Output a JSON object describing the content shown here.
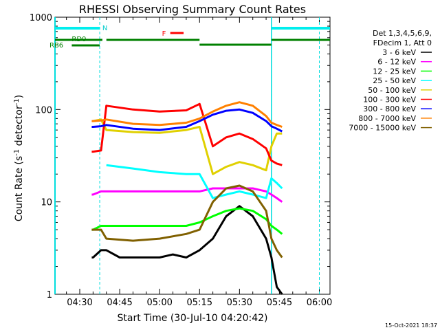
{
  "chart_data": {
    "type": "line",
    "title": "RHESSI Observing Summary Count Rates",
    "xlabel": "Start Time (30-Jul-10 04:20:42)",
    "ylabel_main": "Count Rate (s",
    "ylabel_sup": "-1",
    "ylabel_mid": " detector",
    "ylabel_end": ")",
    "footer": "15-Oct-2021 18:37",
    "x_ticks": [
      "04:30",
      "04:45",
      "05:00",
      "05:15",
      "05:30",
      "05:45",
      "06:00"
    ],
    "x_ticks_min": [
      30,
      45,
      60,
      75,
      90,
      105,
      120
    ],
    "xlim_min": [
      20.7,
      124
    ],
    "y_ticks": [
      "1",
      "10",
      "100",
      "1000"
    ],
    "y_tick_values": [
      1,
      10,
      100,
      1000
    ],
    "ylim": [
      1,
      1000
    ],
    "yscale": "log",
    "legend_header": [
      "Det 1,3,4,5,6,9,",
      "FDecim 1, Att 0"
    ],
    "legend_placement": "right",
    "series": [
      {
        "name": "3 - 6 keV",
        "color": "#000000",
        "x": [
          20.7,
          34.5,
          35,
          38,
          40,
          45,
          50,
          55,
          60,
          65,
          70,
          75,
          80,
          85,
          90,
          95,
          100,
          102,
          104,
          106
        ],
        "y": [
          null,
          2.5,
          2.5,
          3,
          3,
          2.5,
          2.5,
          2.5,
          2.5,
          2.7,
          2.5,
          3,
          4,
          7,
          9,
          7,
          4,
          2.5,
          1.2,
          1
        ]
      },
      {
        "name": "6 - 12 keV",
        "color": "#ff00ff",
        "x": [
          34.5,
          35,
          38,
          40,
          50,
          60,
          70,
          75,
          80,
          85,
          90,
          95,
          100,
          102,
          104,
          106
        ],
        "y": [
          12,
          12,
          13,
          13,
          13,
          13,
          13,
          13,
          14,
          14,
          14,
          14,
          13,
          12,
          11,
          10
        ]
      },
      {
        "name": "12 - 25 keV",
        "color": "#00ff00",
        "x": [
          34.5,
          35,
          38,
          40,
          50,
          60,
          70,
          75,
          80,
          85,
          90,
          95,
          100,
          102,
          104,
          106
        ],
        "y": [
          5,
          5,
          5.5,
          5.5,
          5.5,
          5.5,
          5.5,
          6,
          7,
          8,
          8.5,
          8,
          6.5,
          5.5,
          5,
          4.5
        ]
      },
      {
        "name": "25 - 50 keV",
        "color": "#00ffff",
        "x": [
          34.5,
          35,
          38,
          40,
          50,
          60,
          70,
          75,
          80,
          85,
          90,
          95,
          100,
          102,
          104,
          106
        ],
        "y": [
          null,
          null,
          null,
          25,
          23,
          21,
          20,
          20,
          11,
          12,
          13,
          12,
          11,
          18,
          16,
          14
        ]
      },
      {
        "name": "50 - 100 keV",
        "color": "#e0d000",
        "x": [
          34.5,
          35,
          38,
          40,
          50,
          60,
          70,
          75,
          80,
          85,
          90,
          95,
          100,
          102,
          104,
          106
        ],
        "y": [
          null,
          75,
          78,
          60,
          57,
          56,
          60,
          65,
          20,
          24,
          27,
          25,
          22,
          40,
          55,
          55
        ]
      },
      {
        "name": "100 - 300 keV",
        "color": "#ff0000",
        "x": [
          34.5,
          35,
          38,
          40,
          50,
          60,
          70,
          75,
          80,
          85,
          90,
          95,
          100,
          102,
          104,
          106
        ],
        "y": [
          35,
          35,
          36,
          110,
          100,
          95,
          98,
          115,
          40,
          50,
          55,
          48,
          38,
          28,
          26,
          25
        ]
      },
      {
        "name": "300 - 800 keV",
        "color": "#0000ff",
        "x": [
          34.5,
          35,
          38,
          40,
          50,
          60,
          70,
          75,
          80,
          85,
          90,
          95,
          100,
          102,
          104,
          106
        ],
        "y": [
          65,
          65,
          66,
          68,
          62,
          60,
          65,
          75,
          88,
          97,
          100,
          92,
          75,
          66,
          62,
          58
        ]
      },
      {
        "name": "800 - 7000 keV",
        "color": "#ff8000",
        "x": [
          34.5,
          35,
          38,
          40,
          50,
          60,
          70,
          75,
          80,
          85,
          90,
          95,
          100,
          102,
          104,
          106
        ],
        "y": [
          75,
          75,
          76,
          78,
          70,
          68,
          72,
          80,
          95,
          110,
          120,
          110,
          85,
          72,
          68,
          65
        ]
      },
      {
        "name": "7000 - 15000 keV",
        "color": "#806000",
        "x": [
          34.5,
          35,
          38,
          40,
          50,
          60,
          70,
          75,
          80,
          85,
          90,
          95,
          100,
          102,
          104,
          106
        ],
        "y": [
          5,
          5,
          5,
          4,
          3.8,
          4,
          4.5,
          5,
          10,
          14,
          15,
          13,
          8,
          4,
          3,
          2.5
        ]
      }
    ],
    "annotations": {
      "N_label": "N",
      "F_label": "F",
      "RD0_label": "RD0",
      "RB6_label": "RB6"
    },
    "night_segments_min": [
      [
        20.7,
        37.5
      ],
      [
        102,
        124
      ]
    ],
    "sun_segments_min": [
      [
        20.7,
        38.5
      ],
      [
        40,
        75
      ],
      [
        75,
        102
      ],
      [
        102,
        124
      ]
    ],
    "rd0_segment_min": [
      [
        27,
        37.5
      ]
    ],
    "flare_segment_min": [
      [
        64,
        69
      ]
    ],
    "vlines_min": [
      37.5,
      102,
      120
    ]
  }
}
